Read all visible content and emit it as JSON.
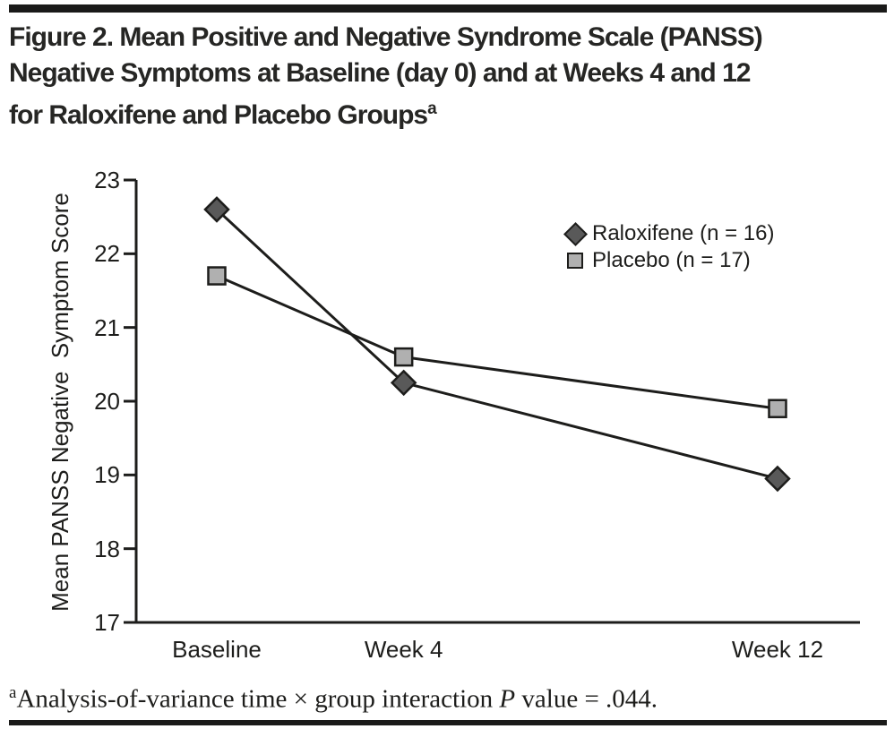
{
  "header": {
    "title_line1": "Figure 2. Mean Positive and Negative Syndrome Scale (PANSS)",
    "title_line2": "Negative Symptoms at Baseline (day 0) and at Weeks 4 and 12",
    "title_line3": "for Raloxifene and Placebo Groups",
    "footnote_marker": "a"
  },
  "chart_data": {
    "type": "line",
    "title": "",
    "categories": [
      "Baseline",
      "Week 4",
      "Week 12"
    ],
    "x_weeks": [
      0,
      4,
      12
    ],
    "xlabel": "",
    "ylabel": "Mean PANSS Negative  Symptom Score",
    "ylim": [
      17,
      23
    ],
    "yticks": [
      23,
      22,
      21,
      20,
      19,
      18,
      17
    ],
    "grid": false,
    "legend_position": "inside-upper-right",
    "line_color": "#1d1d1b",
    "series": [
      {
        "name": "Raloxifene",
        "legend_label": "Raloxifene (n = 16)",
        "marker": "diamond",
        "marker_fill": "#595959",
        "values": [
          22.6,
          20.25,
          18.95
        ]
      },
      {
        "name": "Placebo",
        "legend_label": "Placebo (n = 17)",
        "marker": "square",
        "marker_fill": "#b0b0b0",
        "values": [
          21.7,
          20.6,
          19.9
        ]
      }
    ]
  },
  "footnote": {
    "marker": "a",
    "prefix": "Analysis-of-variance time × group interaction ",
    "p_symbol": "P",
    "suffix": " value = .044."
  }
}
